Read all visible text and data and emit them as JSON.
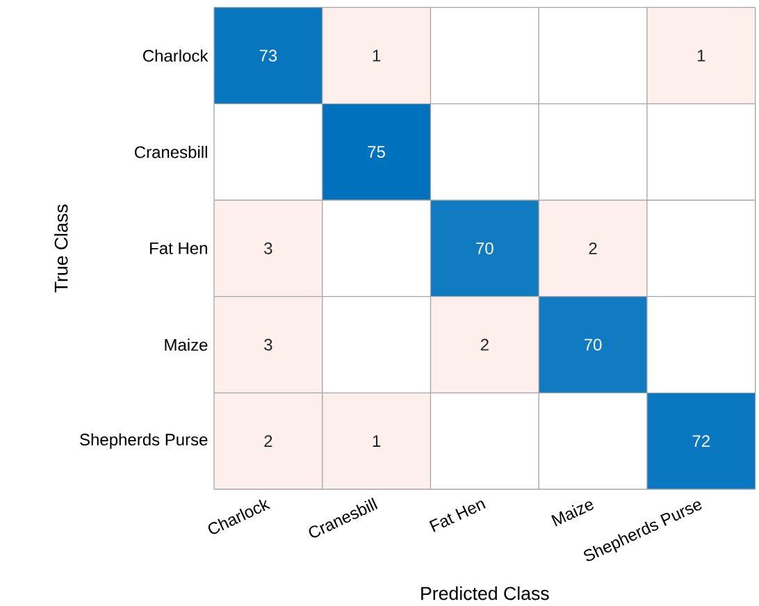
{
  "chart_data": {
    "type": "heatmap",
    "xlabel": "Predicted Class",
    "ylabel": "True Class",
    "categories": [
      "Charlock",
      "Cranesbill",
      "Fat Hen",
      "Maize",
      "Shepherds Purse"
    ],
    "y_categories": [
      "Charlock",
      "Cranesbill",
      "Fat Hen",
      "Maize",
      "Shepherds Purse"
    ],
    "cells": [
      [
        73,
        1,
        null,
        null,
        1
      ],
      [
        null,
        75,
        null,
        null,
        null
      ],
      [
        3,
        null,
        70,
        2,
        null
      ],
      [
        3,
        null,
        2,
        70,
        null
      ],
      [
        2,
        1,
        null,
        null,
        72
      ]
    ],
    "cell_labels": [
      [
        "73",
        "1",
        null,
        null,
        "1"
      ],
      [
        null,
        "75",
        null,
        null,
        null
      ],
      [
        "3",
        null,
        "70",
        "2",
        null
      ],
      [
        "3",
        null,
        "2",
        "70",
        null
      ],
      [
        "2",
        "1",
        null,
        null,
        "72"
      ]
    ]
  }
}
